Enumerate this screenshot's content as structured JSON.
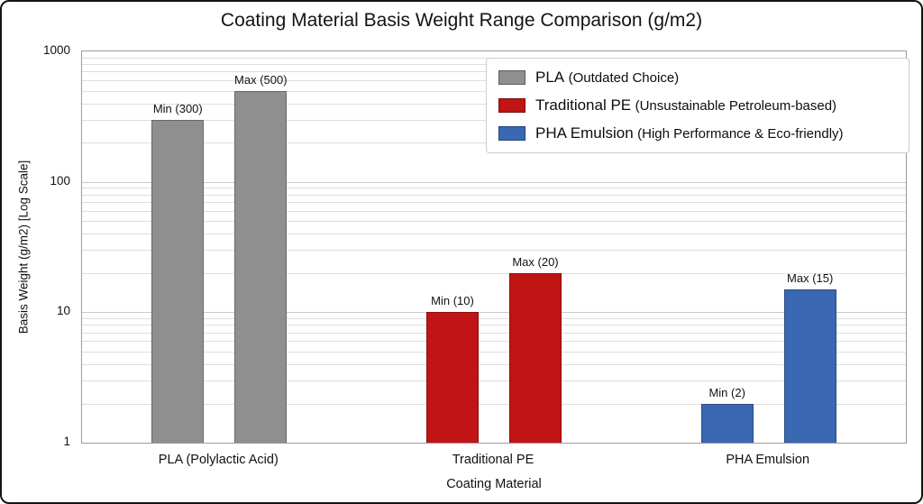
{
  "chart_data": {
    "type": "bar",
    "title": "Coating Material Basis Weight Range Comparison (g/m2)",
    "xlabel": "Coating Material",
    "ylabel": "Basis Weight (g/m2) [Log Scale]",
    "y_scale": "log",
    "ylim": [
      1,
      1000
    ],
    "y_major_ticks": [
      1,
      10,
      100,
      1000
    ],
    "grid": true,
    "legend_position": "top-right",
    "categories": [
      "PLA (Polylactic Acid)",
      "Traditional PE",
      "PHA Emulsion"
    ],
    "series": [
      {
        "name": "Min",
        "values": [
          300,
          10,
          2
        ]
      },
      {
        "name": "Max",
        "values": [
          500,
          20,
          15
        ]
      }
    ],
    "bar_labels": [
      [
        "Min (300)",
        "Max (500)"
      ],
      [
        "Min (10)",
        "Max (20)"
      ],
      [
        "Min (2)",
        "Max (15)"
      ]
    ],
    "colors": [
      "#8f8f8f",
      "#c11414",
      "#3a68b2"
    ],
    "legend": [
      {
        "label": "PLA",
        "sublabel": "(Outdated Choice)",
        "color": "#8f8f8f"
      },
      {
        "label": "Traditional PE",
        "sublabel": "(Unsustainable Petroleum-based)",
        "color": "#c11414"
      },
      {
        "label": "PHA Emulsion",
        "sublabel": "(High Performance & Eco-friendly)",
        "color": "#3a68b2"
      }
    ]
  }
}
